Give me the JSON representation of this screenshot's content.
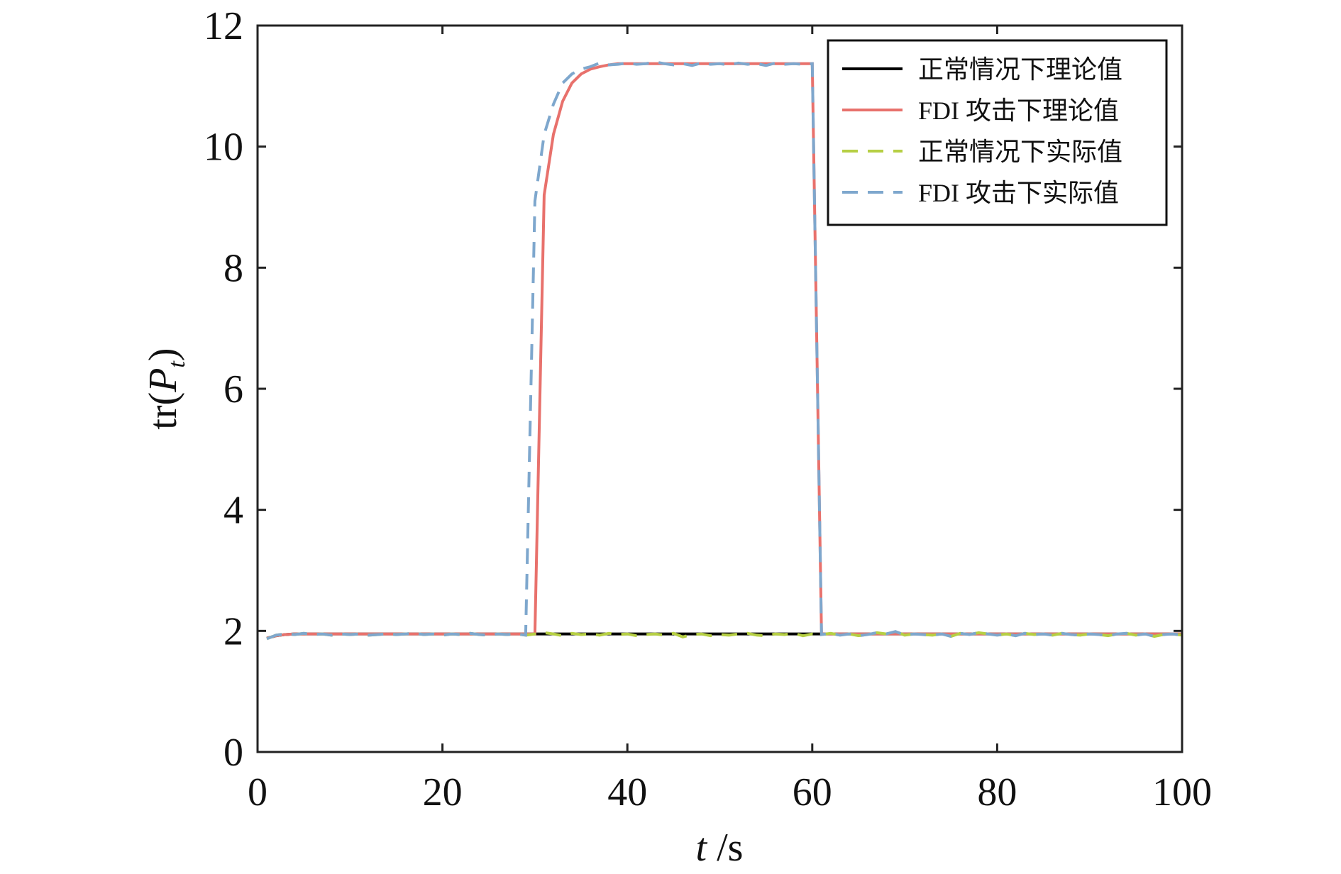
{
  "chart_data": {
    "type": "line",
    "x_label": [
      "t",
      " /s"
    ],
    "y_label": [
      "tr(",
      "P",
      "t",
      ")"
    ],
    "xlim": [
      0,
      100
    ],
    "xticks": [
      0,
      20,
      40,
      60,
      80,
      100
    ],
    "ylim": [
      0,
      12
    ],
    "yticks": [
      0,
      2,
      4,
      6,
      8,
      10,
      12
    ],
    "legend": "upper right",
    "x": [
      1,
      2,
      3,
      4,
      5,
      6,
      7,
      8,
      9,
      10,
      11,
      12,
      13,
      14,
      15,
      16,
      17,
      18,
      19,
      20,
      21,
      22,
      23,
      24,
      25,
      26,
      27,
      28,
      29,
      30,
      31,
      32,
      33,
      34,
      35,
      36,
      37,
      38,
      39,
      40,
      41,
      42,
      43,
      44,
      45,
      46,
      47,
      48,
      49,
      50,
      51,
      52,
      53,
      54,
      55,
      56,
      57,
      58,
      59,
      60,
      61,
      62,
      63,
      64,
      65,
      66,
      67,
      68,
      69,
      70,
      71,
      72,
      73,
      74,
      75,
      76,
      77,
      78,
      79,
      80,
      81,
      82,
      83,
      84,
      85,
      86,
      87,
      88,
      89,
      90,
      91,
      92,
      93,
      94,
      95,
      96,
      97,
      98,
      99,
      100
    ],
    "series": [
      {
        "name": "正常情况下理论值",
        "color": "#000000",
        "dash": false,
        "values": [
          1.88,
          1.92,
          1.94,
          1.95,
          1.95,
          1.95,
          1.95,
          1.95,
          1.95,
          1.95,
          1.95,
          1.95,
          1.95,
          1.95,
          1.95,
          1.95,
          1.95,
          1.95,
          1.95,
          1.95,
          1.95,
          1.95,
          1.95,
          1.95,
          1.95,
          1.95,
          1.95,
          1.95,
          1.95,
          1.95,
          1.95,
          1.95,
          1.95,
          1.95,
          1.95,
          1.95,
          1.95,
          1.95,
          1.95,
          1.95,
          1.95,
          1.95,
          1.95,
          1.95,
          1.95,
          1.95,
          1.95,
          1.95,
          1.95,
          1.95,
          1.95,
          1.95,
          1.95,
          1.95,
          1.95,
          1.95,
          1.95,
          1.95,
          1.95,
          1.95,
          1.95,
          1.95,
          1.95,
          1.95,
          1.95,
          1.95,
          1.95,
          1.95,
          1.95,
          1.95,
          1.95,
          1.95,
          1.95,
          1.95,
          1.95,
          1.95,
          1.95,
          1.95,
          1.95,
          1.95,
          1.95,
          1.95,
          1.95,
          1.95,
          1.95,
          1.95,
          1.95,
          1.95,
          1.95,
          1.95,
          1.95,
          1.95,
          1.95,
          1.95,
          1.95,
          1.95,
          1.95,
          1.95,
          1.95,
          1.95
        ]
      },
      {
        "name": "FDI 攻击下理论值",
        "color": "#e8716c",
        "dash": false,
        "values": [
          1.88,
          1.92,
          1.94,
          1.95,
          1.95,
          1.95,
          1.95,
          1.95,
          1.95,
          1.95,
          1.95,
          1.95,
          1.95,
          1.95,
          1.95,
          1.95,
          1.95,
          1.95,
          1.95,
          1.95,
          1.95,
          1.95,
          1.95,
          1.95,
          1.95,
          1.95,
          1.95,
          1.95,
          1.95,
          1.95,
          9.2,
          10.2,
          10.75,
          11.05,
          11.2,
          11.28,
          11.32,
          11.35,
          11.37,
          11.37,
          11.37,
          11.37,
          11.37,
          11.37,
          11.37,
          11.37,
          11.37,
          11.37,
          11.37,
          11.37,
          11.37,
          11.37,
          11.37,
          11.37,
          11.37,
          11.37,
          11.37,
          11.37,
          11.37,
          11.37,
          1.95,
          1.95,
          1.95,
          1.95,
          1.95,
          1.95,
          1.95,
          1.95,
          1.95,
          1.95,
          1.95,
          1.95,
          1.95,
          1.95,
          1.95,
          1.95,
          1.95,
          1.95,
          1.95,
          1.95,
          1.95,
          1.95,
          1.95,
          1.95,
          1.95,
          1.95,
          1.95,
          1.95,
          1.95,
          1.95,
          1.95,
          1.95,
          1.95,
          1.95,
          1.95,
          1.95,
          1.95,
          1.95,
          1.95,
          1.95
        ]
      },
      {
        "name": "正常情况下实际值",
        "color": "#b6cf44",
        "dash": true,
        "values": [
          1.87,
          1.93,
          1.95,
          1.94,
          1.96,
          1.94,
          1.95,
          1.93,
          1.95,
          1.94,
          1.95,
          1.93,
          1.94,
          1.95,
          1.94,
          1.95,
          1.96,
          1.94,
          1.95,
          1.93,
          1.95,
          1.94,
          1.96,
          1.94,
          1.93,
          1.95,
          1.94,
          1.95,
          1.93,
          1.95,
          1.97,
          1.95,
          1.92,
          1.96,
          1.94,
          1.95,
          1.93,
          1.96,
          1.94,
          1.95,
          1.92,
          1.94,
          1.95,
          1.93,
          1.96,
          1.9,
          1.94,
          1.95,
          1.92,
          1.94,
          1.93,
          1.95,
          1.96,
          1.93,
          1.92,
          1.95,
          1.94,
          1.96,
          1.92,
          1.95,
          1.94,
          1.96,
          1.93,
          1.95,
          1.92,
          1.94,
          1.97,
          1.95,
          1.99,
          1.93,
          1.95,
          1.94,
          1.93,
          1.95,
          1.91,
          1.96,
          1.94,
          1.97,
          1.95,
          1.93,
          1.95,
          1.92,
          1.96,
          1.94,
          1.95,
          1.93,
          1.96,
          1.94,
          1.93,
          1.95,
          1.94,
          1.92,
          1.95,
          1.96,
          1.93,
          1.95,
          1.91,
          1.94,
          1.95,
          1.93
        ]
      },
      {
        "name": "FDI 攻击下实际值",
        "color": "#7ea7cd",
        "dash": true,
        "values": [
          1.87,
          1.93,
          1.95,
          1.94,
          1.96,
          1.94,
          1.95,
          1.93,
          1.95,
          1.94,
          1.95,
          1.93,
          1.94,
          1.95,
          1.94,
          1.95,
          1.96,
          1.94,
          1.95,
          1.93,
          1.95,
          1.94,
          1.96,
          1.94,
          1.93,
          1.95,
          1.94,
          1.95,
          1.93,
          9.1,
          10.2,
          10.7,
          11.05,
          11.2,
          11.28,
          11.32,
          11.38,
          11.35,
          11.36,
          11.38,
          11.36,
          11.37,
          11.4,
          11.37,
          11.35,
          11.37,
          11.34,
          11.38,
          11.36,
          11.37,
          11.35,
          11.38,
          11.36,
          11.37,
          11.34,
          11.38,
          11.36,
          11.37,
          11.36,
          11.37,
          1.94,
          1.96,
          1.93,
          1.95,
          1.92,
          1.94,
          1.97,
          1.95,
          1.99,
          1.93,
          1.95,
          1.94,
          1.93,
          1.95,
          1.91,
          1.96,
          1.94,
          1.97,
          1.95,
          1.93,
          1.95,
          1.92,
          1.96,
          1.94,
          1.95,
          1.93,
          1.96,
          1.94,
          1.93,
          1.95,
          1.94,
          1.92,
          1.95,
          1.96,
          1.93,
          1.95,
          1.91,
          1.94,
          1.95,
          1.93
        ]
      }
    ]
  }
}
